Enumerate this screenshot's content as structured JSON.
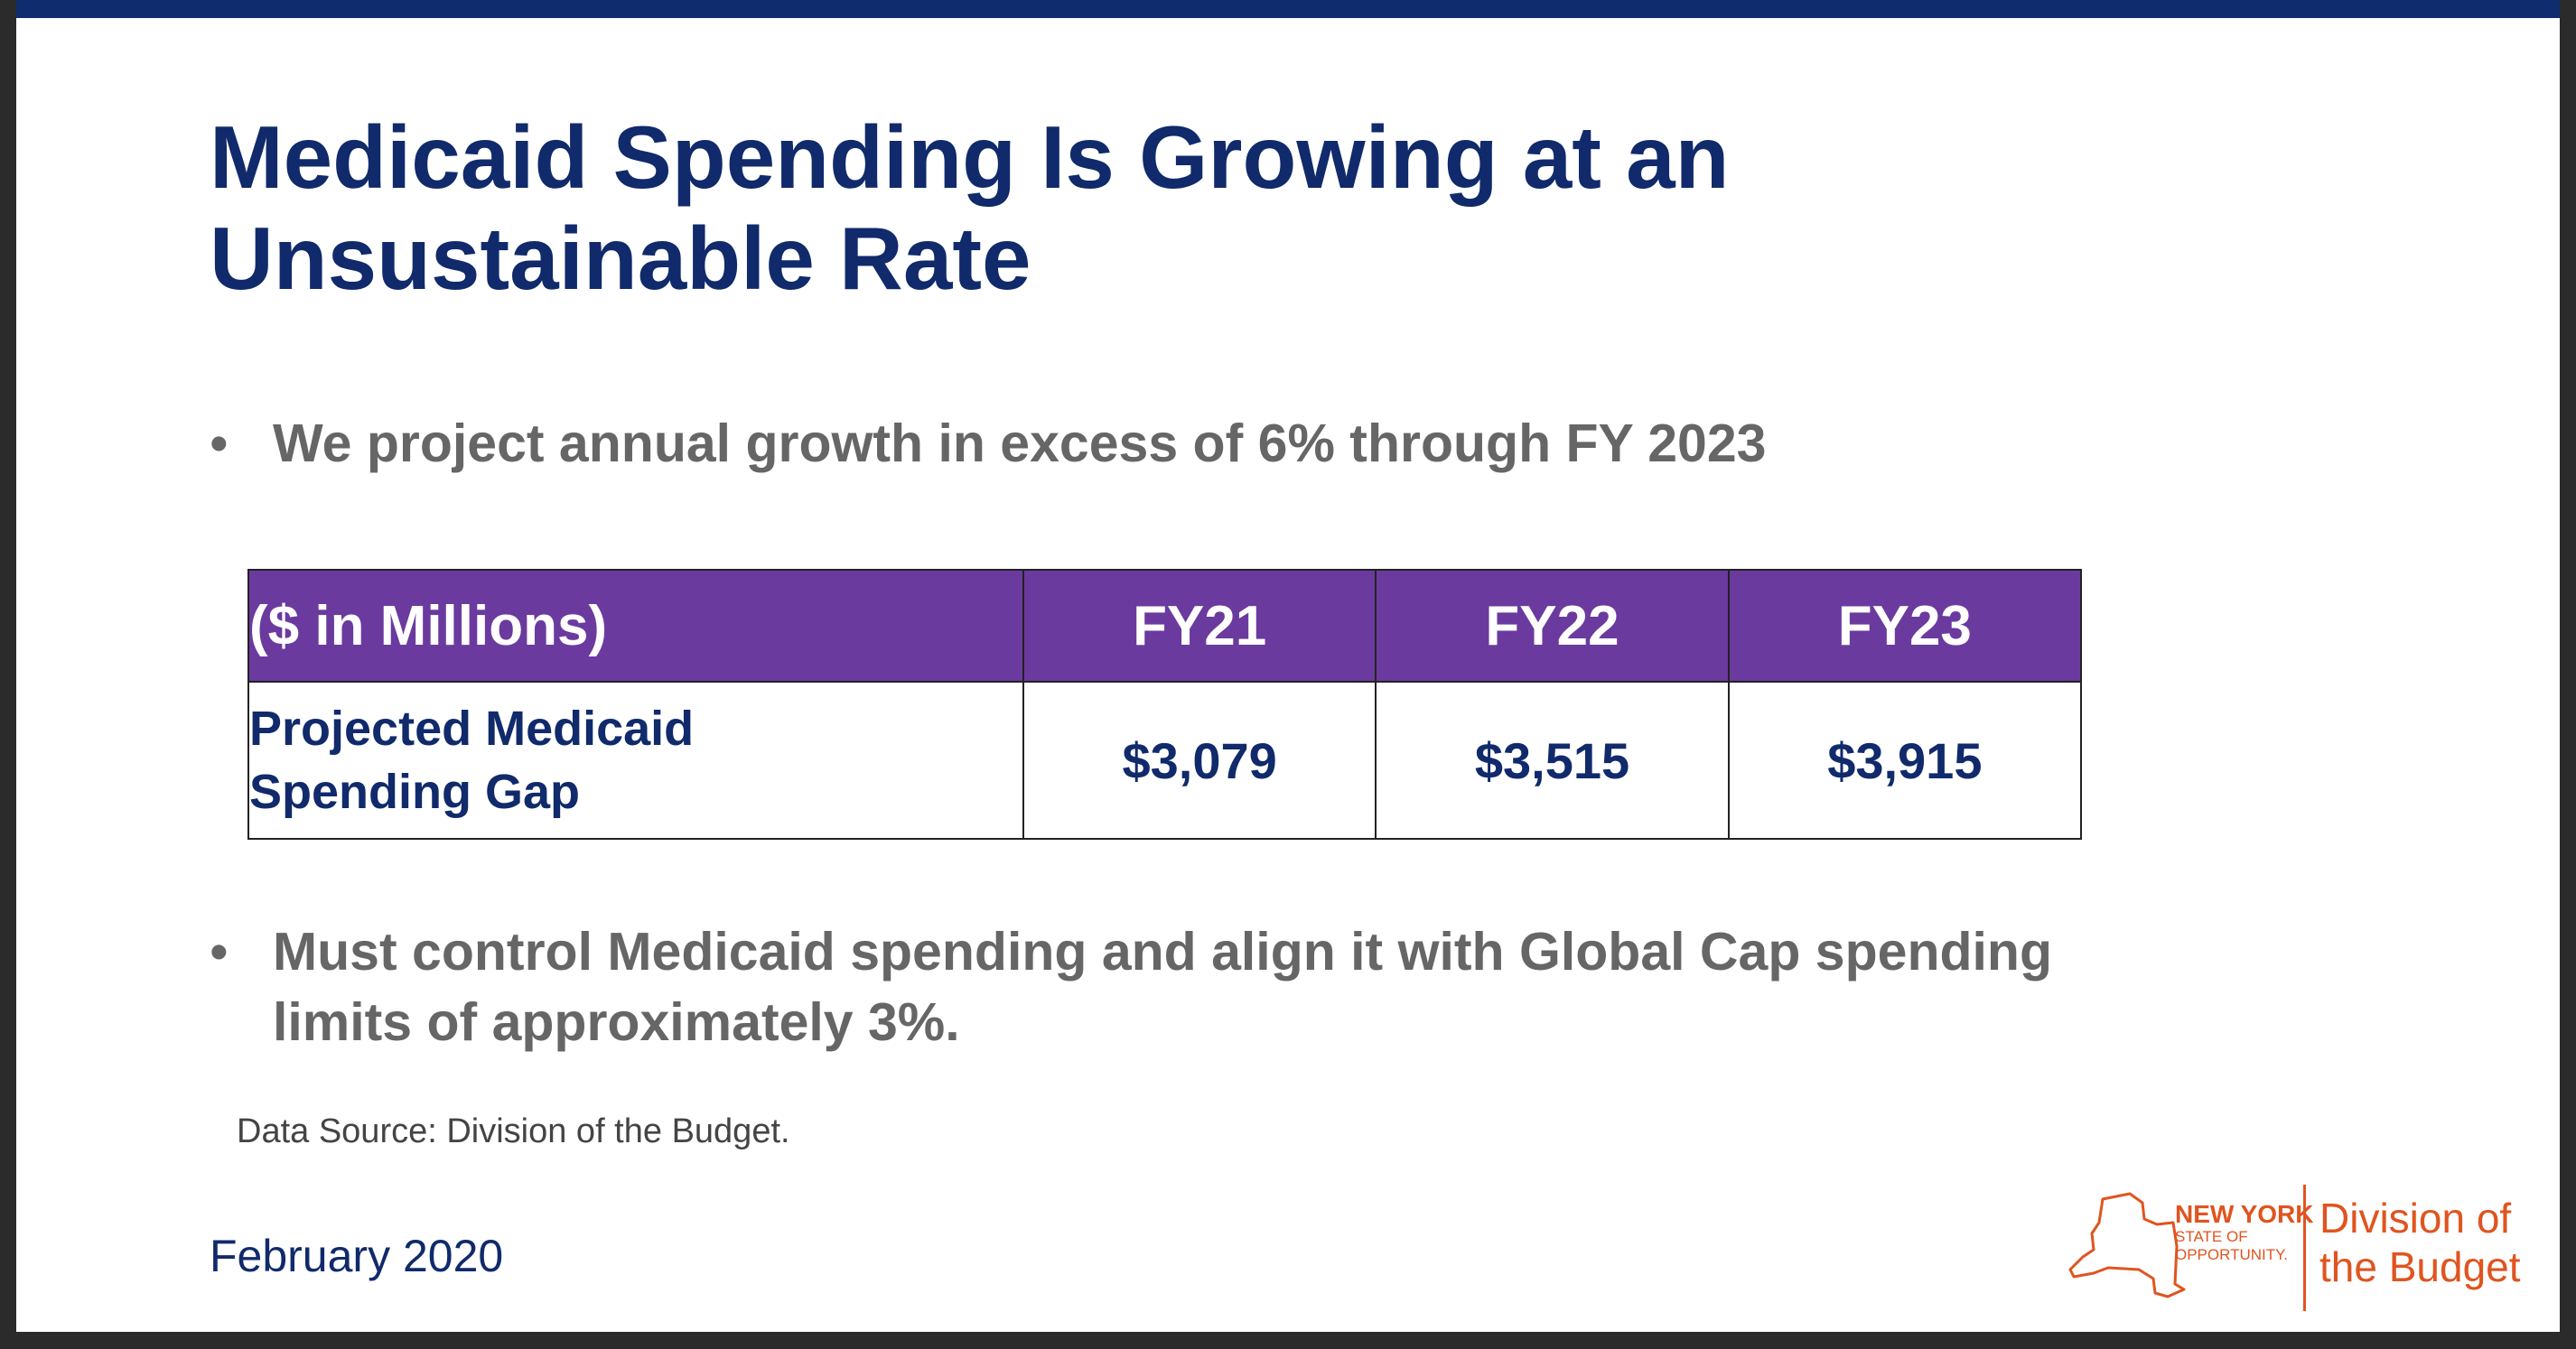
{
  "slide": {
    "title": "Medicaid Spending Is Growing at an Unsustainable Rate",
    "bullets": [
      "We project annual growth in excess of 6% through FY 2023",
      "Must control Medicaid spending and align it with Global Cap spending limits of approximately 3%."
    ],
    "bullet_symbol": "•",
    "table": {
      "headers": [
        "($ in Millions)",
        "FY21",
        "FY22",
        "FY23"
      ],
      "row_label_line1": "Projected Medicaid",
      "row_label_line2": "Spending Gap",
      "values": [
        "$3,079",
        "$3,515",
        "$3,915"
      ]
    },
    "source": "Data Source: Division of the Budget.",
    "date": "February 2020",
    "logo": {
      "ny_line1": "NEW YORK",
      "ny_line2": "STATE OF",
      "ny_line3": "OPPORTUNITY.",
      "dob_line1": "Division of",
      "dob_line2": "the Budget"
    }
  },
  "colors": {
    "title": "#102a6b",
    "header_bg": "#6b3a9e",
    "bullet_text": "#666666",
    "logo_accent": "#e0541f",
    "top_bar": "#0f2d6e"
  }
}
